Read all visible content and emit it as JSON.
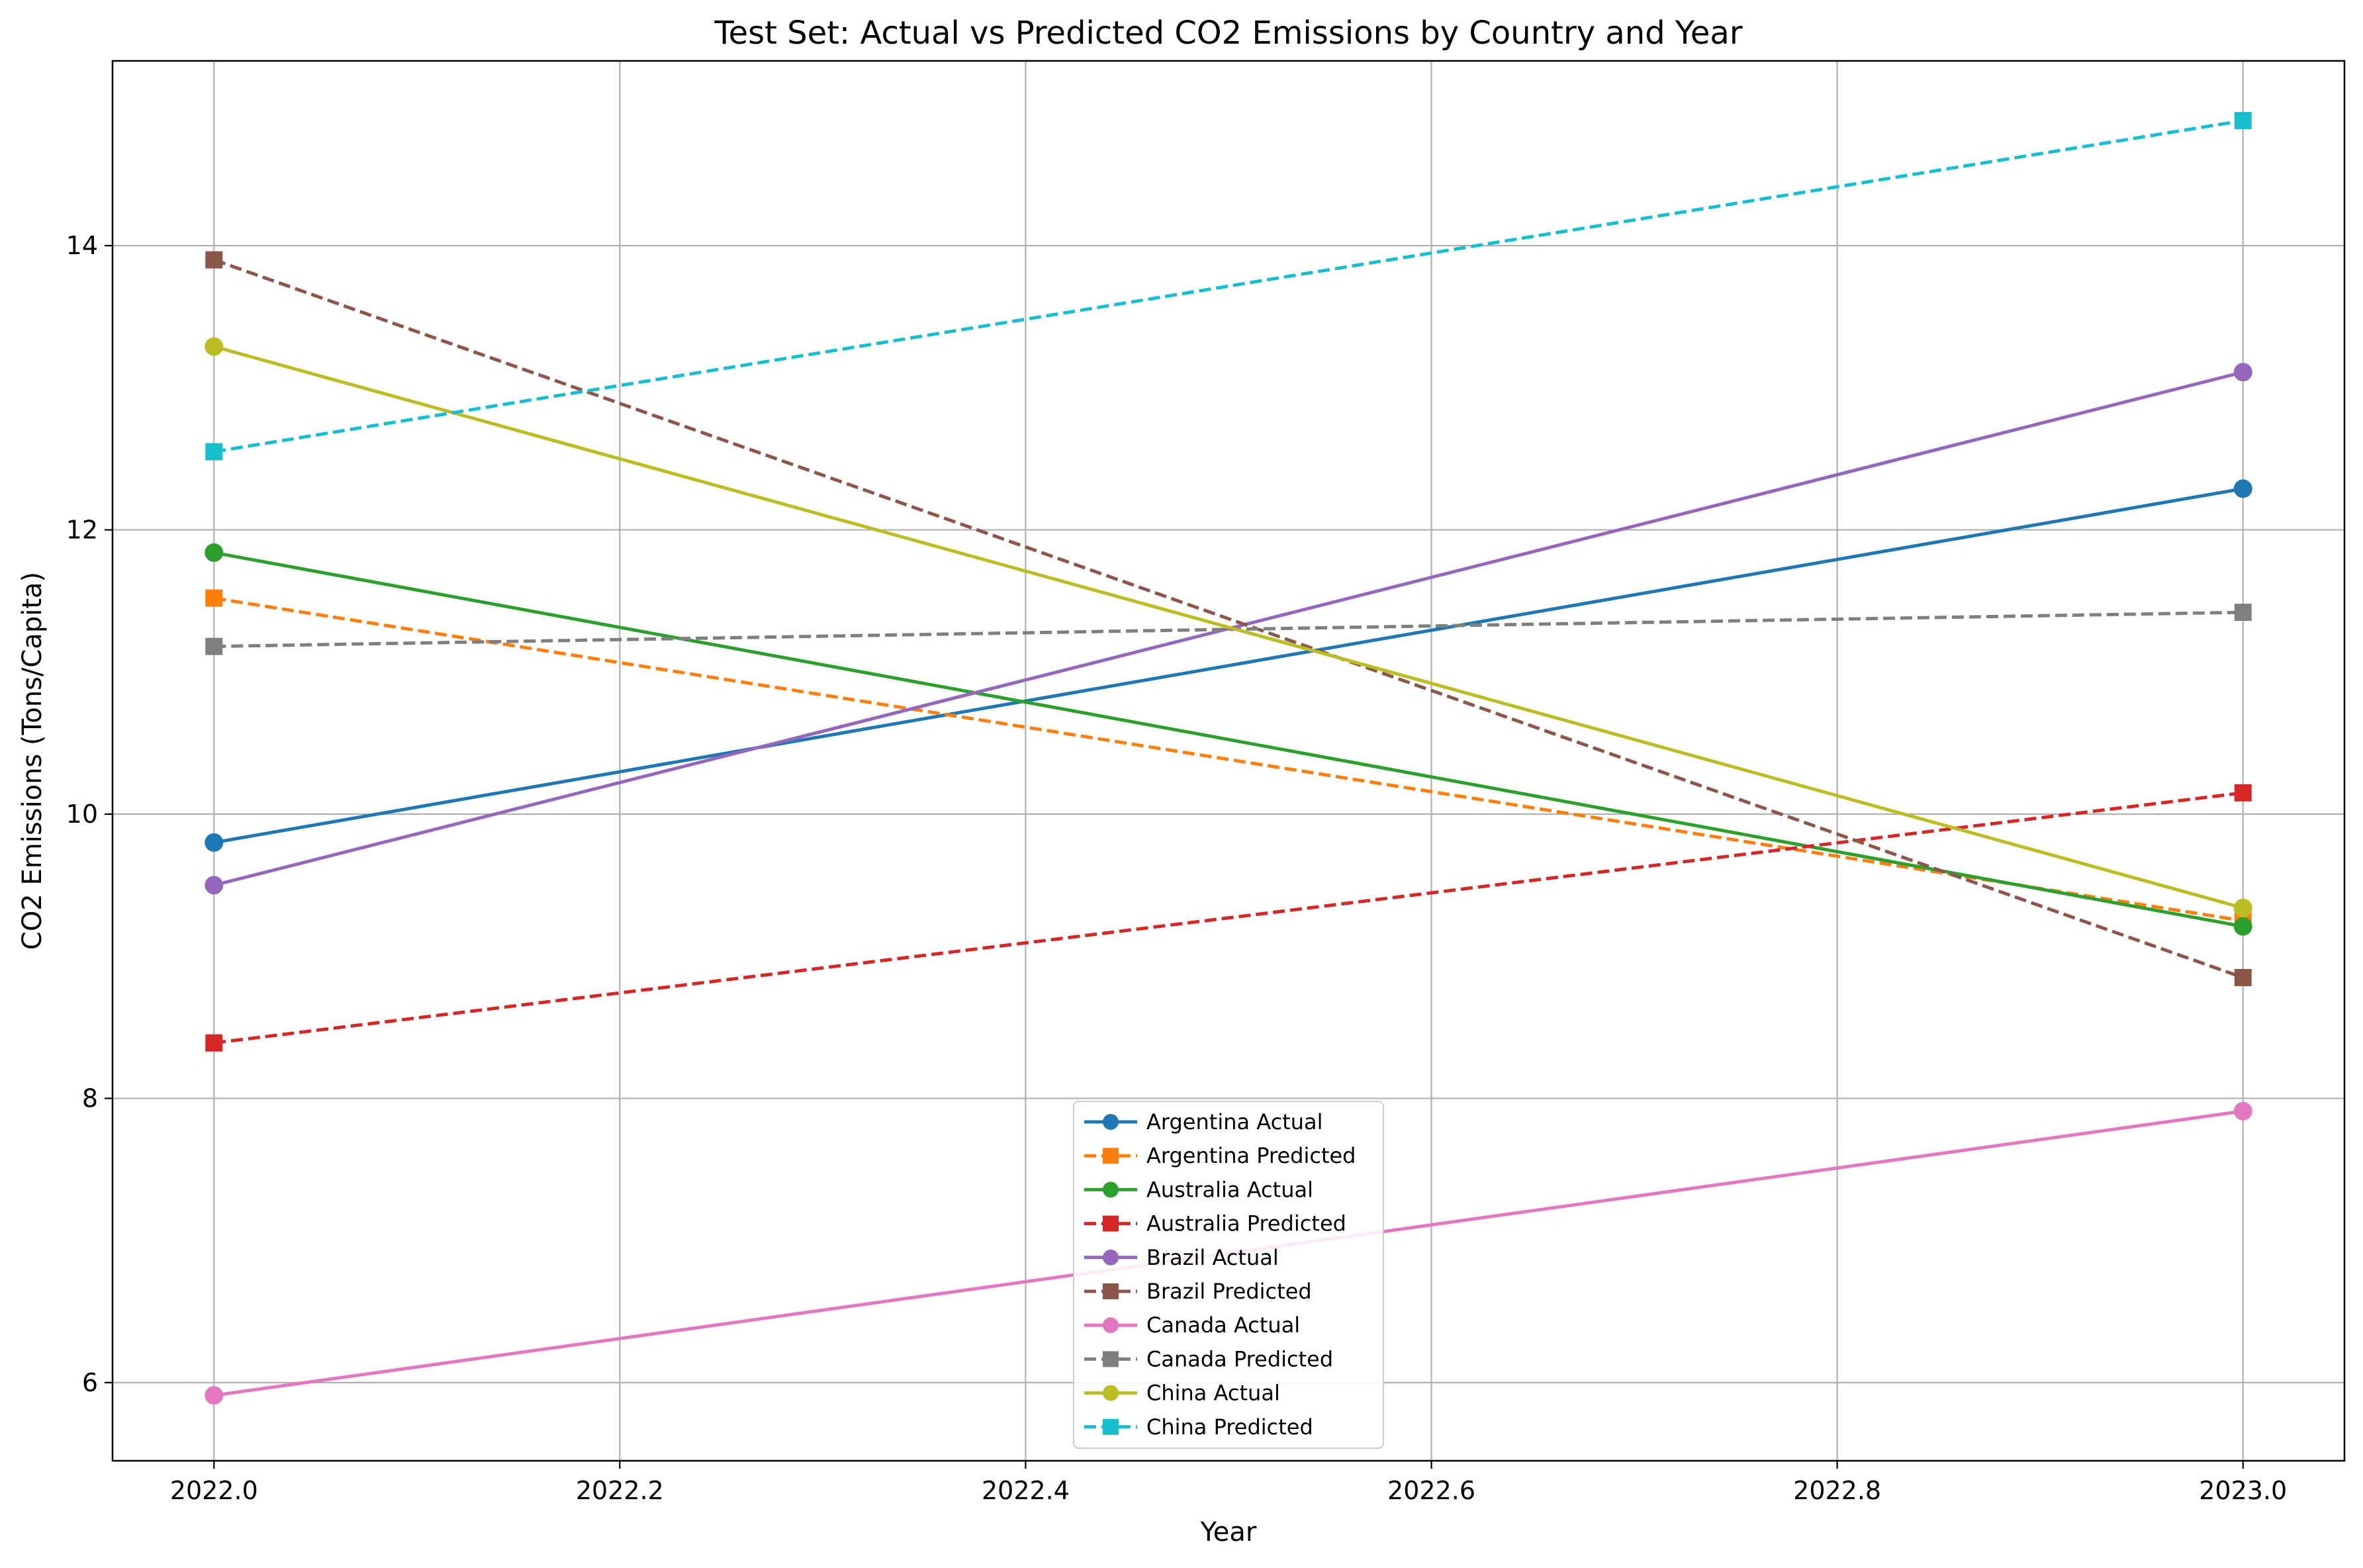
{
  "chart_data": {
    "type": "line",
    "title": "Test Set: Actual vs Predicted CO2 Emissions by Country and Year",
    "xlabel": "Year",
    "ylabel": "CO2 Emissions (Tons/Capita)",
    "xlim": [
      2021.95,
      2023.05
    ],
    "ylim": [
      5.45,
      15.3
    ],
    "x_ticks": [
      "2022.0",
      "2022.2",
      "2022.4",
      "2022.6",
      "2022.8",
      "2023.0"
    ],
    "y_ticks": [
      "6",
      "8",
      "10",
      "12",
      "14"
    ],
    "grid": true,
    "legend_position": "lower center",
    "x": [
      2022.0,
      2023.0
    ],
    "series": [
      {
        "name": "Argentina Actual",
        "values": [
          9.8,
          12.29
        ],
        "color": "#1f77b4",
        "line_style": "solid",
        "marker": "circle"
      },
      {
        "name": "Argentina Predicted",
        "values": [
          11.52,
          9.25
        ],
        "color": "#ff7f0e",
        "line_style": "dashed",
        "marker": "square"
      },
      {
        "name": "Australia Actual",
        "values": [
          11.84,
          9.21
        ],
        "color": "#2ca02c",
        "line_style": "solid",
        "marker": "circle"
      },
      {
        "name": "Australia Predicted",
        "values": [
          8.39,
          10.15
        ],
        "color": "#d62728",
        "line_style": "dashed",
        "marker": "square"
      },
      {
        "name": "Brazil Actual",
        "values": [
          9.5,
          13.11
        ],
        "color": "#9467bd",
        "line_style": "solid",
        "marker": "circle"
      },
      {
        "name": "Brazil Predicted",
        "values": [
          13.9,
          8.85
        ],
        "color": "#8c564b",
        "line_style": "dashed",
        "marker": "square"
      },
      {
        "name": "Canada Actual",
        "values": [
          5.91,
          7.91
        ],
        "color": "#e377c2",
        "line_style": "solid",
        "marker": "circle"
      },
      {
        "name": "Canada Predicted",
        "values": [
          11.18,
          11.42
        ],
        "color": "#7f7f7f",
        "line_style": "dashed",
        "marker": "square"
      },
      {
        "name": "China Actual",
        "values": [
          13.29,
          9.34
        ],
        "color": "#bcbd22",
        "line_style": "solid",
        "marker": "circle"
      },
      {
        "name": "China Predicted",
        "values": [
          12.55,
          14.88
        ],
        "color": "#17becf",
        "line_style": "dashed",
        "marker": "square"
      }
    ]
  }
}
